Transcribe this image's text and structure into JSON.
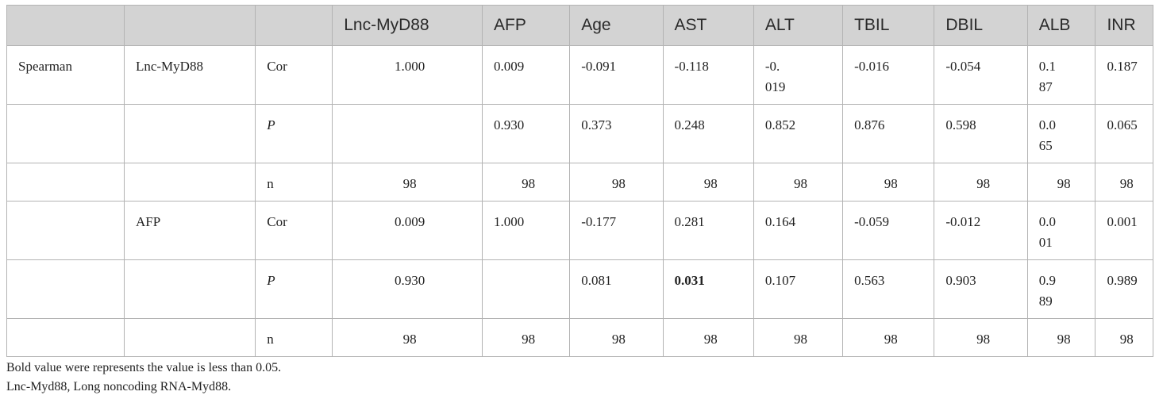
{
  "table": {
    "headers": [
      "",
      "",
      "",
      "Lnc-MyD88",
      "AFP",
      "Age",
      "AST",
      "ALT",
      "TBIL",
      "DBIL",
      "ALB",
      "INR"
    ],
    "rows": [
      [
        "Spearman",
        "Lnc-MyD88",
        "Cor",
        "1.000",
        "0.009",
        "-0.091",
        "-0.118",
        "-0.019",
        "-0.016",
        "-0.054",
        "0.187",
        "0.187"
      ],
      [
        "",
        "",
        "P",
        "",
        "0.930",
        "0.373",
        "0.248",
        "0.852",
        "0.876",
        "0.598",
        "0.065",
        "0.065"
      ],
      [
        "",
        "",
        "n",
        "98",
        "98",
        "98",
        "98",
        "98",
        "98",
        "98",
        "98",
        "98"
      ],
      [
        "",
        "AFP",
        "Cor",
        "0.009",
        "1.000",
        "-0.177",
        "0.281",
        "0.164",
        "-0.059",
        "-0.012",
        "0.001",
        "0.001"
      ],
      [
        "",
        "",
        "P",
        "0.930",
        "",
        "0.081",
        "0.031",
        "0.107",
        "0.563",
        "0.903",
        "0.989",
        "0.989"
      ],
      [
        "",
        "",
        "n",
        "98",
        "98",
        "98",
        "98",
        "98",
        "98",
        "98",
        "98",
        "98"
      ]
    ]
  },
  "notes": [
    "Bold value were represents the value is less than 0.05.",
    "Lnc-Myd88, Long noncoding RNA-Myd88."
  ]
}
